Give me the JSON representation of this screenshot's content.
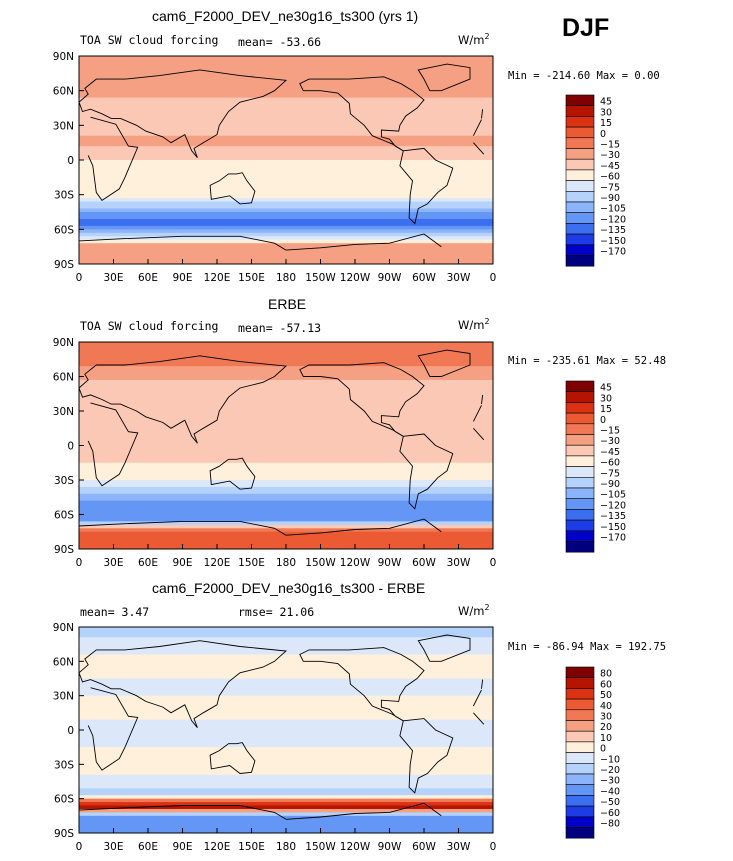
{
  "season_label": "DJF",
  "colors": {
    "blues": [
      "#00007f",
      "#0000c8",
      "#1e3ce6",
      "#3c6ef0",
      "#6496f5",
      "#8cb4fa",
      "#b4d2fa",
      "#dce8fa"
    ],
    "pale": "#fff0dc",
    "reds": [
      "#fac8b4",
      "#f5a082",
      "#f07855",
      "#eb5a32",
      "#dc3214",
      "#b41400",
      "#7f0000"
    ]
  },
  "chart_data": [
    {
      "type": "heatmap",
      "panel": "model",
      "title": "cam6_F2000_DEV_ne30g16_ts300 (yrs 1)",
      "field_label": "TOA SW cloud forcing",
      "stat_text": "mean= -53.66",
      "units": "W/m",
      "units_exp": "2",
      "minmax_text": "Min = -214.60 Max =   0.00",
      "mean": -53.66,
      "min": -214.6,
      "max": 0.0,
      "colorbar_levels": [
        "45",
        "30",
        "15",
        "0",
        "-15",
        "-30",
        "-45",
        "-60",
        "-75",
        "-90",
        "-105",
        "-120",
        "-135",
        "-150",
        "-170"
      ],
      "zonal_profile": [
        {
          "lat": 90,
          "value": -20
        },
        {
          "lat": 75,
          "value": -15
        },
        {
          "lat": 60,
          "value": -20
        },
        {
          "lat": 45,
          "value": -45
        },
        {
          "lat": 30,
          "value": -35
        },
        {
          "lat": 15,
          "value": -25
        },
        {
          "lat": 0,
          "value": -45
        },
        {
          "lat": -15,
          "value": -50
        },
        {
          "lat": -30,
          "value": -50
        },
        {
          "lat": -45,
          "value": -105
        },
        {
          "lat": -55,
          "value": -135
        },
        {
          "lat": -62,
          "value": -95
        },
        {
          "lat": -75,
          "value": -20
        },
        {
          "lat": -90,
          "value": -20
        }
      ]
    },
    {
      "type": "heatmap",
      "panel": "obs",
      "title": "ERBE",
      "field_label": "TOA SW cloud forcing",
      "stat_text": "mean= -57.13",
      "units": "W/m",
      "units_exp": "2",
      "minmax_text": "Min = -235.61 Max =  52.48",
      "mean": -57.13,
      "min": -235.61,
      "max": 52.48,
      "colorbar_levels": [
        "45",
        "30",
        "15",
        "0",
        "-15",
        "-30",
        "-45",
        "-60",
        "-75",
        "-90",
        "-105",
        "-120",
        "-135",
        "-150",
        "-170"
      ],
      "zonal_profile": [
        {
          "lat": 90,
          "value": -5
        },
        {
          "lat": 75,
          "value": -10
        },
        {
          "lat": 60,
          "value": -25
        },
        {
          "lat": 45,
          "value": -45
        },
        {
          "lat": 30,
          "value": -35
        },
        {
          "lat": 15,
          "value": -30
        },
        {
          "lat": 0,
          "value": -40
        },
        {
          "lat": -15,
          "value": -45
        },
        {
          "lat": -30,
          "value": -60
        },
        {
          "lat": -45,
          "value": -100
        },
        {
          "lat": -55,
          "value": -120
        },
        {
          "lat": -65,
          "value": -105
        },
        {
          "lat": -75,
          "value": 15
        },
        {
          "lat": -90,
          "value": 15
        }
      ]
    },
    {
      "type": "heatmap",
      "panel": "diff",
      "title": "cam6_F2000_DEV_ne30g16_ts300 - ERBE",
      "stat_text_left": "mean=   3.47",
      "stat_text_mid": "rmse=  21.06",
      "units": "W/m",
      "units_exp": "2",
      "minmax_text": "Min = -86.94 Max = 192.75",
      "mean": 3.47,
      "rmse": 21.06,
      "min": -86.94,
      "max": 192.75,
      "colorbar_levels": [
        "80",
        "60",
        "50",
        "40",
        "30",
        "20",
        "10",
        "0",
        "-10",
        "-20",
        "-30",
        "-40",
        "-50",
        "-60",
        "-80"
      ],
      "zonal_profile": [
        {
          "lat": 90,
          "value": -15
        },
        {
          "lat": 75,
          "value": -5
        },
        {
          "lat": 60,
          "value": 5
        },
        {
          "lat": 45,
          "value": 0
        },
        {
          "lat": 30,
          "value": 0
        },
        {
          "lat": 15,
          "value": 5
        },
        {
          "lat": 0,
          "value": -5
        },
        {
          "lat": -15,
          "value": 0
        },
        {
          "lat": -30,
          "value": 10
        },
        {
          "lat": -45,
          "value": -5
        },
        {
          "lat": -55,
          "value": -15
        },
        {
          "lat": -67,
          "value": 70
        },
        {
          "lat": -75,
          "value": -30
        },
        {
          "lat": -90,
          "value": -30
        }
      ]
    }
  ],
  "axes": {
    "y_ticks": [
      "90N",
      "60N",
      "30N",
      "0",
      "30S",
      "60S",
      "90S"
    ],
    "x_ticks": [
      "0",
      "30E",
      "60E",
      "90E",
      "120E",
      "150E",
      "180",
      "150W",
      "120W",
      "90W",
      "60W",
      "30W",
      "0"
    ]
  }
}
